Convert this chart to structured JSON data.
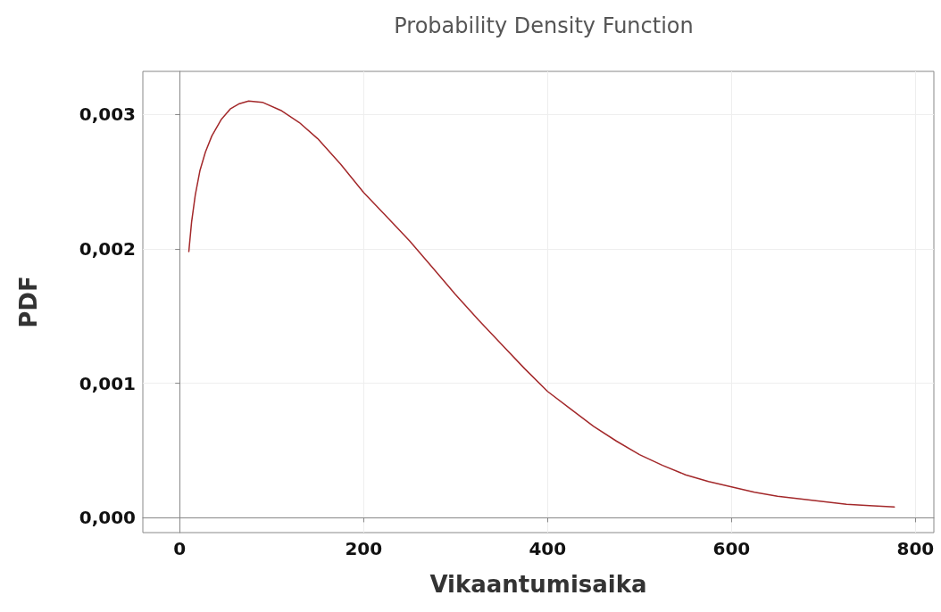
{
  "chart_data": {
    "type": "line",
    "title": "Probability Density Function",
    "xlabel": "Vikaantumisaika",
    "ylabel": "PDF",
    "series": [
      {
        "color": "#a3282a",
        "x": [
          10,
          13,
          17,
          22,
          28,
          35,
          45,
          55,
          65,
          75,
          90,
          110,
          130,
          150,
          175,
          200,
          225,
          250,
          275,
          300,
          325,
          350,
          375,
          400,
          425,
          450,
          475,
          500,
          525,
          550,
          575,
          600,
          625,
          650,
          675,
          700,
          725,
          750,
          777
        ],
        "values": [
          0.00198,
          0.0022,
          0.0024,
          0.00258,
          0.00272,
          0.00284,
          0.00296,
          0.00304,
          0.00308,
          0.0031,
          0.00309,
          0.00303,
          0.00294,
          0.00282,
          0.00263,
          0.00242,
          0.00224,
          0.00206,
          0.00186,
          0.00166,
          0.00147,
          0.00129,
          0.00111,
          0.00094,
          0.00081,
          0.00068,
          0.00057,
          0.00047,
          0.00039,
          0.00032,
          0.00027,
          0.00023,
          0.00019,
          0.00016,
          0.00014,
          0.00012,
          0.0001,
          9e-05,
          8e-05
        ]
      }
    ],
    "xlim": [
      -40,
      820
    ],
    "xticks": [
      0,
      200,
      400,
      600,
      800
    ],
    "ylim": [
      -0.00011,
      0.00332
    ],
    "yticks": [
      {
        "value": 0,
        "label": "0,000"
      },
      {
        "value": 0.001,
        "label": "0,001"
      },
      {
        "value": 0.002,
        "label": "0,002"
      },
      {
        "value": 0.003,
        "label": "0,003"
      }
    ],
    "grid": true,
    "marker": "none",
    "line_style": "solid"
  }
}
